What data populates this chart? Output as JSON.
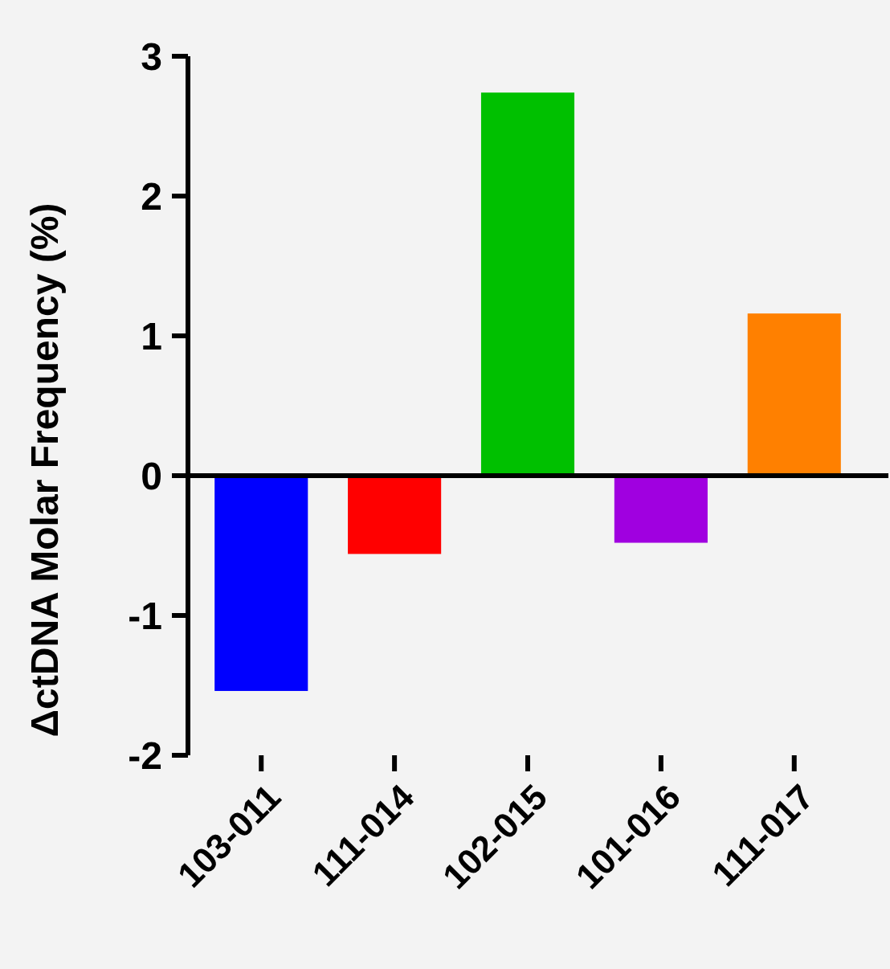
{
  "chart_data": {
    "type": "bar",
    "ylabel": "ΔctDNA Molar Frequency (%)",
    "categories": [
      "103-011",
      "111-014",
      "102-015",
      "101-016",
      "111-017"
    ],
    "values": [
      -1.54,
      -0.56,
      2.74,
      -0.48,
      1.16
    ],
    "colors": [
      "#0000ff",
      "#ff0000",
      "#00c000",
      "#a000e0",
      "#ff8000"
    ],
    "ylim": [
      -2,
      3
    ],
    "yticks": [
      -2,
      -1,
      0,
      1,
      2,
      3
    ]
  }
}
